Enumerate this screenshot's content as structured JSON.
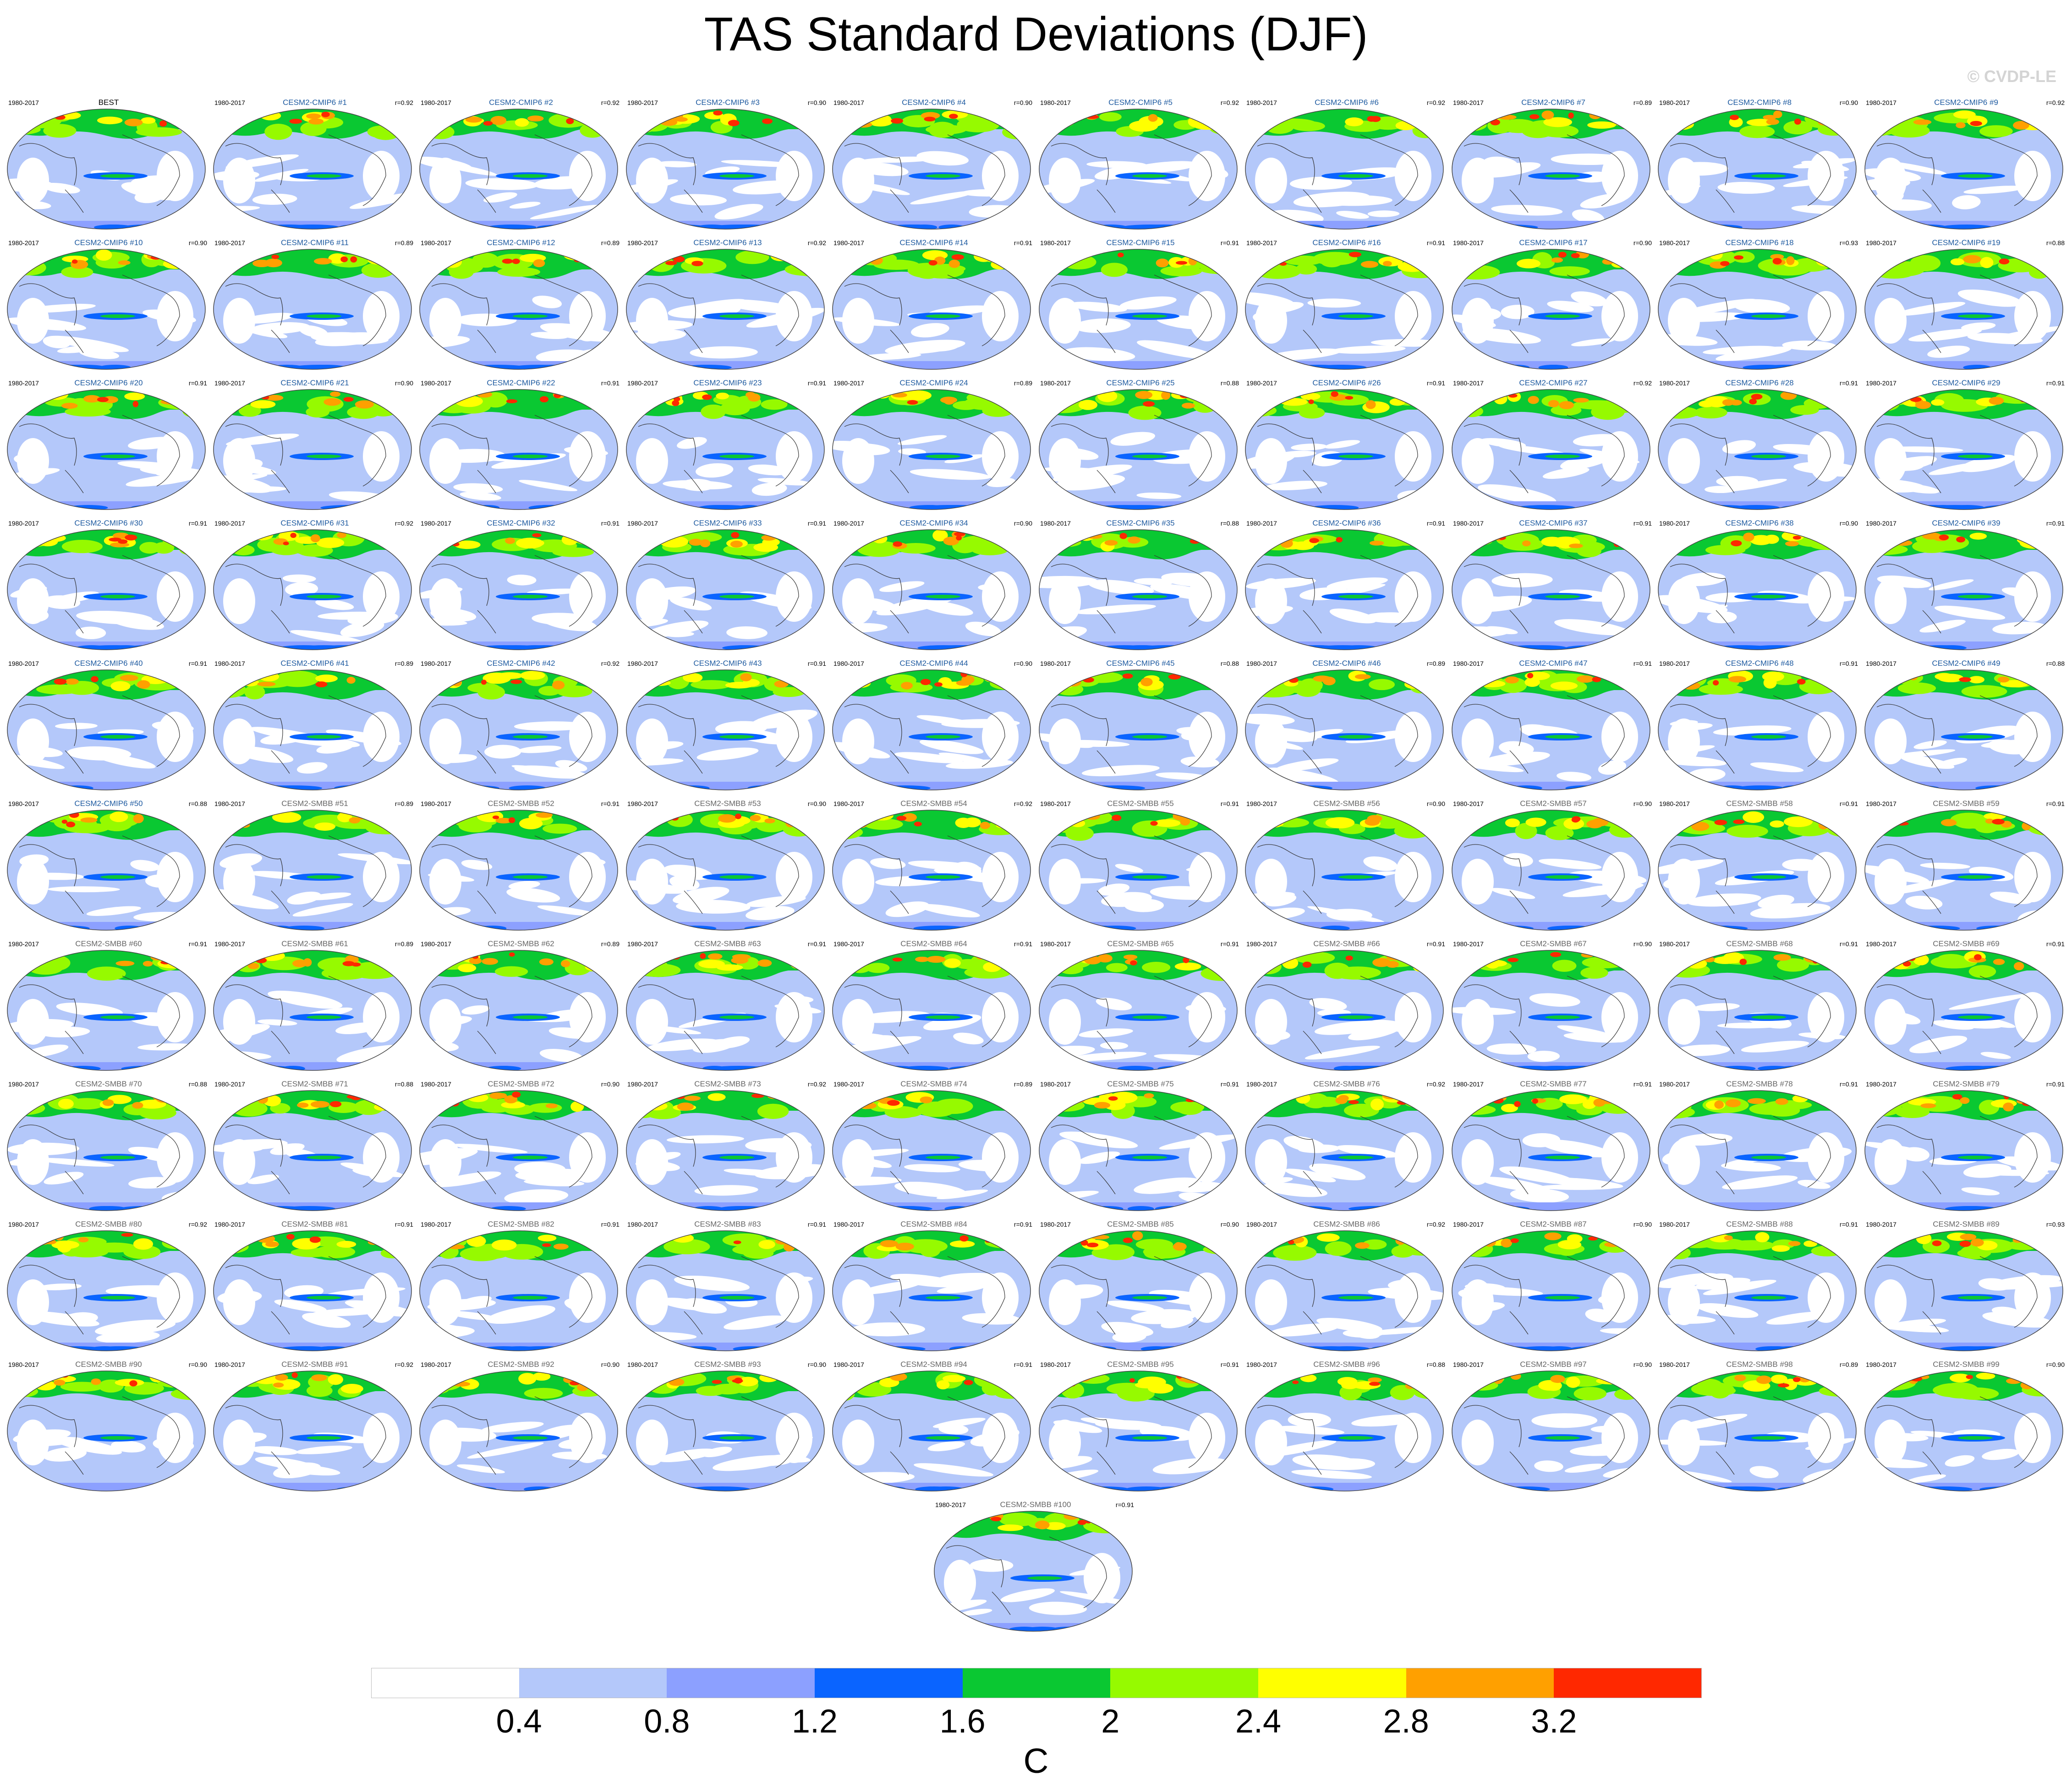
{
  "title": "TAS Standard Deviations (DJF)",
  "copyright": "© CVDP-LE",
  "chart_data": {
    "type": "heatmap",
    "title": "TAS Standard Deviations (DJF)",
    "units": "C",
    "colorbar": {
      "ticks": [
        "0.4",
        "0.8",
        "1.2",
        "1.6",
        "2",
        "2.4",
        "2.8",
        "3.2"
      ],
      "colors": [
        "#ffffff",
        "#b4c8fa",
        "#8ca0ff",
        "#0a64ff",
        "#0ac832",
        "#96fa00",
        "#ffff00",
        "#ffa000",
        "#ff2800"
      ]
    },
    "panels": [
      {
        "name": "BEST",
        "period": "1980-2017",
        "corr": ""
      },
      {
        "name": "CESM2-CMIP6 #1",
        "period": "1980-2017",
        "corr": "r=0.92"
      },
      {
        "name": "CESM2-CMIP6 #2",
        "period": "1980-2017",
        "corr": "r=0.92"
      },
      {
        "name": "CESM2-CMIP6 #3",
        "period": "1980-2017",
        "corr": "r=0.90"
      },
      {
        "name": "CESM2-CMIP6 #4",
        "period": "1980-2017",
        "corr": "r=0.90"
      },
      {
        "name": "CESM2-CMIP6 #5",
        "period": "1980-2017",
        "corr": "r=0.92"
      },
      {
        "name": "CESM2-CMIP6 #6",
        "period": "1980-2017",
        "corr": "r=0.92"
      },
      {
        "name": "CESM2-CMIP6 #7",
        "period": "1980-2017",
        "corr": "r=0.89"
      },
      {
        "name": "CESM2-CMIP6 #8",
        "period": "1980-2017",
        "corr": "r=0.90"
      },
      {
        "name": "CESM2-CMIP6 #9",
        "period": "1980-2017",
        "corr": "r=0.92"
      },
      {
        "name": "CESM2-CMIP6 #10",
        "period": "1980-2017",
        "corr": "r=0.90"
      },
      {
        "name": "CESM2-CMIP6 #11",
        "period": "1980-2017",
        "corr": "r=0.89"
      },
      {
        "name": "CESM2-CMIP6 #12",
        "period": "1980-2017",
        "corr": "r=0.89"
      },
      {
        "name": "CESM2-CMIP6 #13",
        "period": "1980-2017",
        "corr": "r=0.92"
      },
      {
        "name": "CESM2-CMIP6 #14",
        "period": "1980-2017",
        "corr": "r=0.91"
      },
      {
        "name": "CESM2-CMIP6 #15",
        "period": "1980-2017",
        "corr": "r=0.91"
      },
      {
        "name": "CESM2-CMIP6 #16",
        "period": "1980-2017",
        "corr": "r=0.91"
      },
      {
        "name": "CESM2-CMIP6 #17",
        "period": "1980-2017",
        "corr": "r=0.90"
      },
      {
        "name": "CESM2-CMIP6 #18",
        "period": "1980-2017",
        "corr": "r=0.93"
      },
      {
        "name": "CESM2-CMIP6 #19",
        "period": "1980-2017",
        "corr": "r=0.88"
      },
      {
        "name": "CESM2-CMIP6 #20",
        "period": "1980-2017",
        "corr": "r=0.91"
      },
      {
        "name": "CESM2-CMIP6 #21",
        "period": "1980-2017",
        "corr": "r=0.90"
      },
      {
        "name": "CESM2-CMIP6 #22",
        "period": "1980-2017",
        "corr": "r=0.91"
      },
      {
        "name": "CESM2-CMIP6 #23",
        "period": "1980-2017",
        "corr": "r=0.91"
      },
      {
        "name": "CESM2-CMIP6 #24",
        "period": "1980-2017",
        "corr": "r=0.89"
      },
      {
        "name": "CESM2-CMIP6 #25",
        "period": "1980-2017",
        "corr": "r=0.88"
      },
      {
        "name": "CESM2-CMIP6 #26",
        "period": "1980-2017",
        "corr": "r=0.91"
      },
      {
        "name": "CESM2-CMIP6 #27",
        "period": "1980-2017",
        "corr": "r=0.92"
      },
      {
        "name": "CESM2-CMIP6 #28",
        "period": "1980-2017",
        "corr": "r=0.91"
      },
      {
        "name": "CESM2-CMIP6 #29",
        "period": "1980-2017",
        "corr": "r=0.91"
      },
      {
        "name": "CESM2-CMIP6 #30",
        "period": "1980-2017",
        "corr": "r=0.91"
      },
      {
        "name": "CESM2-CMIP6 #31",
        "period": "1980-2017",
        "corr": "r=0.92"
      },
      {
        "name": "CESM2-CMIP6 #32",
        "period": "1980-2017",
        "corr": "r=0.91"
      },
      {
        "name": "CESM2-CMIP6 #33",
        "period": "1980-2017",
        "corr": "r=0.91"
      },
      {
        "name": "CESM2-CMIP6 #34",
        "period": "1980-2017",
        "corr": "r=0.90"
      },
      {
        "name": "CESM2-CMIP6 #35",
        "period": "1980-2017",
        "corr": "r=0.88"
      },
      {
        "name": "CESM2-CMIP6 #36",
        "period": "1980-2017",
        "corr": "r=0.91"
      },
      {
        "name": "CESM2-CMIP6 #37",
        "period": "1980-2017",
        "corr": "r=0.91"
      },
      {
        "name": "CESM2-CMIP6 #38",
        "period": "1980-2017",
        "corr": "r=0.90"
      },
      {
        "name": "CESM2-CMIP6 #39",
        "period": "1980-2017",
        "corr": "r=0.91"
      },
      {
        "name": "CESM2-CMIP6 #40",
        "period": "1980-2017",
        "corr": "r=0.91"
      },
      {
        "name": "CESM2-CMIP6 #41",
        "period": "1980-2017",
        "corr": "r=0.89"
      },
      {
        "name": "CESM2-CMIP6 #42",
        "period": "1980-2017",
        "corr": "r=0.92"
      },
      {
        "name": "CESM2-CMIP6 #43",
        "period": "1980-2017",
        "corr": "r=0.91"
      },
      {
        "name": "CESM2-CMIP6 #44",
        "period": "1980-2017",
        "corr": "r=0.90"
      },
      {
        "name": "CESM2-CMIP6 #45",
        "period": "1980-2017",
        "corr": "r=0.88"
      },
      {
        "name": "CESM2-CMIP6 #46",
        "period": "1980-2017",
        "corr": "r=0.89"
      },
      {
        "name": "CESM2-CMIP6 #47",
        "period": "1980-2017",
        "corr": "r=0.91"
      },
      {
        "name": "CESM2-CMIP6 #48",
        "period": "1980-2017",
        "corr": "r=0.91"
      },
      {
        "name": "CESM2-CMIP6 #49",
        "period": "1980-2017",
        "corr": "r=0.88"
      },
      {
        "name": "CESM2-CMIP6 #50",
        "period": "1980-2017",
        "corr": "r=0.88"
      },
      {
        "name": "CESM2-SMBB #51",
        "period": "1980-2017",
        "corr": "r=0.89"
      },
      {
        "name": "CESM2-SMBB #52",
        "period": "1980-2017",
        "corr": "r=0.91"
      },
      {
        "name": "CESM2-SMBB #53",
        "period": "1980-2017",
        "corr": "r=0.90"
      },
      {
        "name": "CESM2-SMBB #54",
        "period": "1980-2017",
        "corr": "r=0.92"
      },
      {
        "name": "CESM2-SMBB #55",
        "period": "1980-2017",
        "corr": "r=0.91"
      },
      {
        "name": "CESM2-SMBB #56",
        "period": "1980-2017",
        "corr": "r=0.90"
      },
      {
        "name": "CESM2-SMBB #57",
        "period": "1980-2017",
        "corr": "r=0.90"
      },
      {
        "name": "CESM2-SMBB #58",
        "period": "1980-2017",
        "corr": "r=0.91"
      },
      {
        "name": "CESM2-SMBB #59",
        "period": "1980-2017",
        "corr": "r=0.91"
      },
      {
        "name": "CESM2-SMBB #60",
        "period": "1980-2017",
        "corr": "r=0.91"
      },
      {
        "name": "CESM2-SMBB #61",
        "period": "1980-2017",
        "corr": "r=0.89"
      },
      {
        "name": "CESM2-SMBB #62",
        "period": "1980-2017",
        "corr": "r=0.89"
      },
      {
        "name": "CESM2-SMBB #63",
        "period": "1980-2017",
        "corr": "r=0.91"
      },
      {
        "name": "CESM2-SMBB #64",
        "period": "1980-2017",
        "corr": "r=0.91"
      },
      {
        "name": "CESM2-SMBB #65",
        "period": "1980-2017",
        "corr": "r=0.91"
      },
      {
        "name": "CESM2-SMBB #66",
        "period": "1980-2017",
        "corr": "r=0.91"
      },
      {
        "name": "CESM2-SMBB #67",
        "period": "1980-2017",
        "corr": "r=0.90"
      },
      {
        "name": "CESM2-SMBB #68",
        "period": "1980-2017",
        "corr": "r=0.91"
      },
      {
        "name": "CESM2-SMBB #69",
        "period": "1980-2017",
        "corr": "r=0.91"
      },
      {
        "name": "CESM2-SMBB #70",
        "period": "1980-2017",
        "corr": "r=0.88"
      },
      {
        "name": "CESM2-SMBB #71",
        "period": "1980-2017",
        "corr": "r=0.88"
      },
      {
        "name": "CESM2-SMBB #72",
        "period": "1980-2017",
        "corr": "r=0.90"
      },
      {
        "name": "CESM2-SMBB #73",
        "period": "1980-2017",
        "corr": "r=0.92"
      },
      {
        "name": "CESM2-SMBB #74",
        "period": "1980-2017",
        "corr": "r=0.89"
      },
      {
        "name": "CESM2-SMBB #75",
        "period": "1980-2017",
        "corr": "r=0.91"
      },
      {
        "name": "CESM2-SMBB #76",
        "period": "1980-2017",
        "corr": "r=0.92"
      },
      {
        "name": "CESM2-SMBB #77",
        "period": "1980-2017",
        "corr": "r=0.91"
      },
      {
        "name": "CESM2-SMBB #78",
        "period": "1980-2017",
        "corr": "r=0.91"
      },
      {
        "name": "CESM2-SMBB #79",
        "period": "1980-2017",
        "corr": "r=0.91"
      },
      {
        "name": "CESM2-SMBB #80",
        "period": "1980-2017",
        "corr": "r=0.92"
      },
      {
        "name": "CESM2-SMBB #81",
        "period": "1980-2017",
        "corr": "r=0.91"
      },
      {
        "name": "CESM2-SMBB #82",
        "period": "1980-2017",
        "corr": "r=0.91"
      },
      {
        "name": "CESM2-SMBB #83",
        "period": "1980-2017",
        "corr": "r=0.91"
      },
      {
        "name": "CESM2-SMBB #84",
        "period": "1980-2017",
        "corr": "r=0.91"
      },
      {
        "name": "CESM2-SMBB #85",
        "period": "1980-2017",
        "corr": "r=0.90"
      },
      {
        "name": "CESM2-SMBB #86",
        "period": "1980-2017",
        "corr": "r=0.92"
      },
      {
        "name": "CESM2-SMBB #87",
        "period": "1980-2017",
        "corr": "r=0.90"
      },
      {
        "name": "CESM2-SMBB #88",
        "period": "1980-2017",
        "corr": "r=0.91"
      },
      {
        "name": "CESM2-SMBB #89",
        "period": "1980-2017",
        "corr": "r=0.93"
      },
      {
        "name": "CESM2-SMBB #90",
        "period": "1980-2017",
        "corr": "r=0.90"
      },
      {
        "name": "CESM2-SMBB #91",
        "period": "1980-2017",
        "corr": "r=0.92"
      },
      {
        "name": "CESM2-SMBB #92",
        "period": "1980-2017",
        "corr": "r=0.90"
      },
      {
        "name": "CESM2-SMBB #93",
        "period": "1980-2017",
        "corr": "r=0.90"
      },
      {
        "name": "CESM2-SMBB #94",
        "period": "1980-2017",
        "corr": "r=0.91"
      },
      {
        "name": "CESM2-SMBB #95",
        "period": "1980-2017",
        "corr": "r=0.91"
      },
      {
        "name": "CESM2-SMBB #96",
        "period": "1980-2017",
        "corr": "r=0.88"
      },
      {
        "name": "CESM2-SMBB #97",
        "period": "1980-2017",
        "corr": "r=0.90"
      },
      {
        "name": "CESM2-SMBB #98",
        "period": "1980-2017",
        "corr": "r=0.89"
      },
      {
        "name": "CESM2-SMBB #99",
        "period": "1980-2017",
        "corr": "r=0.90"
      },
      {
        "name": "CESM2-SMBB #100",
        "period": "1980-2017",
        "corr": "r=0.91"
      }
    ]
  }
}
